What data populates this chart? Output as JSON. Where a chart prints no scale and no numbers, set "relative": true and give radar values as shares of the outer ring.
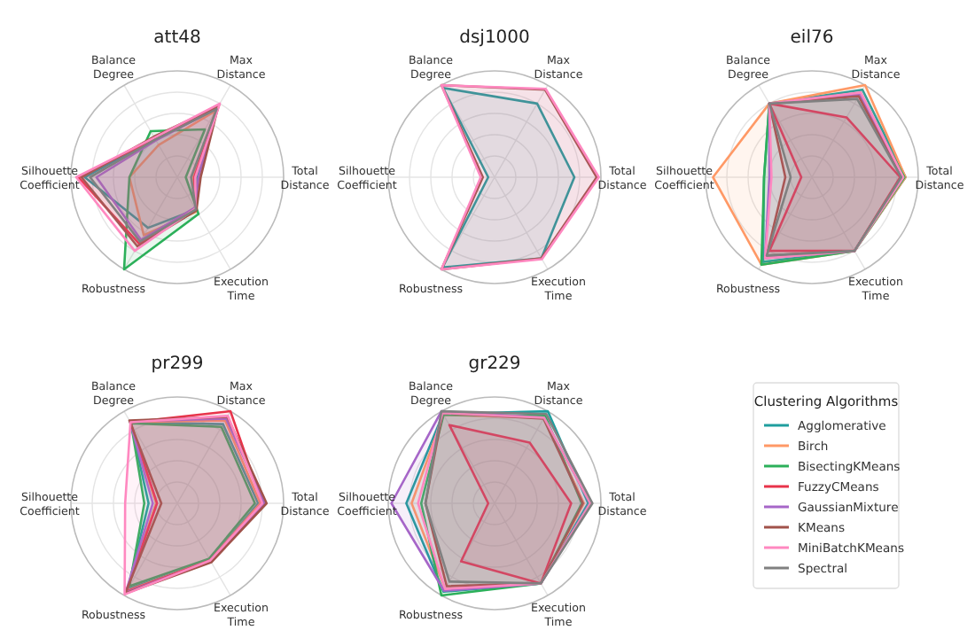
{
  "chart_data": [
    {
      "type": "radar",
      "title": "att48",
      "relative": true,
      "grid": true,
      "categories": [
        "Max Distance",
        "Total Distance",
        "Execution Time",
        "Robustness",
        "Silhouette Coefficient",
        "Balance Degree"
      ],
      "series": [
        {
          "color": "#1f9e9e",
          "values": [
            0.77,
            0.18,
            0.35,
            0.55,
            0.87,
            0.42
          ]
        },
        {
          "color": "#ff9966",
          "values": [
            0.72,
            0.15,
            0.37,
            0.63,
            0.45,
            0.35
          ]
        },
        {
          "color": "#2cb05a",
          "values": [
            0.52,
            0.08,
            0.4,
            1.0,
            0.45,
            0.5
          ]
        },
        {
          "color": "#e8334a",
          "values": [
            0.79,
            0.16,
            0.35,
            0.72,
            0.93,
            0.42
          ]
        },
        {
          "color": "#a666c8",
          "values": [
            0.75,
            0.2,
            0.33,
            0.68,
            0.76,
            0.4
          ]
        },
        {
          "color": "#a0524a",
          "values": [
            0.77,
            0.22,
            0.36,
            0.75,
            0.9,
            0.44
          ]
        },
        {
          "color": "#ff88c0",
          "values": [
            0.8,
            0.17,
            0.34,
            0.8,
            0.95,
            0.43
          ]
        },
        {
          "color": "#808080",
          "values": [
            0.74,
            0.13,
            0.35,
            0.7,
            0.82,
            0.41
          ]
        }
      ]
    },
    {
      "type": "radar",
      "title": "dsj1000",
      "relative": true,
      "grid": true,
      "categories": [
        "Max Distance",
        "Total Distance",
        "Execution Time",
        "Robustness",
        "Silhouette Coefficient",
        "Balance Degree"
      ],
      "series": [
        {
          "color": "#1f9e9e",
          "values": [
            0.8,
            0.75,
            0.88,
            0.98,
            0.06,
            0.97
          ]
        },
        {
          "color": "#a0524a",
          "values": [
            0.95,
            0.96,
            0.88,
            1.0,
            0.11,
            1.0
          ]
        },
        {
          "color": "#ff88c0",
          "values": [
            0.96,
            0.98,
            0.89,
            1.0,
            0.13,
            1.0
          ]
        }
      ]
    },
    {
      "type": "radar",
      "title": "eil76",
      "relative": true,
      "grid": true,
      "categories": [
        "Max Distance",
        "Total Distance",
        "Execution Time",
        "Robustness",
        "Silhouette Coefficient",
        "Balance Degree"
      ],
      "series": [
        {
          "color": "#1f9e9e",
          "values": [
            0.95,
            0.88,
            0.8,
            0.92,
            0.45,
            0.8
          ]
        },
        {
          "color": "#ff9966",
          "values": [
            1.0,
            0.88,
            0.8,
            0.95,
            0.93,
            0.8
          ]
        },
        {
          "color": "#2cb05a",
          "values": [
            0.9,
            0.87,
            0.8,
            0.95,
            0.45,
            0.8
          ]
        },
        {
          "color": "#e8334a",
          "values": [
            0.65,
            0.83,
            0.8,
            0.8,
            0.1,
            0.8
          ]
        },
        {
          "color": "#a666c8",
          "values": [
            0.9,
            0.85,
            0.8,
            0.88,
            0.4,
            0.8
          ]
        },
        {
          "color": "#a0524a",
          "values": [
            0.88,
            0.84,
            0.8,
            0.85,
            0.25,
            0.8
          ]
        },
        {
          "color": "#ff88c0",
          "values": [
            0.92,
            0.86,
            0.8,
            0.88,
            0.38,
            0.8
          ]
        },
        {
          "color": "#808080",
          "values": [
            0.85,
            0.84,
            0.8,
            0.85,
            0.2,
            0.8
          ]
        }
      ]
    },
    {
      "type": "radar",
      "title": "pr299",
      "relative": true,
      "grid": true,
      "categories": [
        "Max Distance",
        "Total Distance",
        "Execution Time",
        "Robustness",
        "Silhouette Coefficient",
        "Balance Degree"
      ],
      "series": [
        {
          "color": "#1f9e9e",
          "values": [
            0.86,
            0.76,
            0.62,
            0.93,
            0.27,
            0.88
          ]
        },
        {
          "color": "#ff9966",
          "values": [
            0.9,
            0.78,
            0.62,
            0.95,
            0.2,
            0.88
          ]
        },
        {
          "color": "#2cb05a",
          "values": [
            0.83,
            0.73,
            0.6,
            0.9,
            0.31,
            0.87
          ]
        },
        {
          "color": "#e8334a",
          "values": [
            1.0,
            0.8,
            0.62,
            0.96,
            0.19,
            0.88
          ]
        },
        {
          "color": "#a666c8",
          "values": [
            0.92,
            0.82,
            0.63,
            0.97,
            0.23,
            0.89
          ]
        },
        {
          "color": "#a0524a",
          "values": [
            0.94,
            0.84,
            0.64,
            0.98,
            0.15,
            0.9
          ]
        },
        {
          "color": "#ff88c0",
          "values": [
            0.95,
            0.8,
            0.62,
            0.99,
            0.49,
            0.88
          ]
        }
      ]
    },
    {
      "type": "radar",
      "title": "gr229",
      "relative": true,
      "grid": true,
      "legend": "right",
      "legend_title": "Clustering Algorithms",
      "categories": [
        "Max Distance",
        "Total Distance",
        "Execution Time",
        "Robustness",
        "Silhouette Coefficient",
        "Balance Degree"
      ],
      "series": [
        {
          "name": "Agglomerative",
          "color": "#1f9e9e",
          "values": [
            1.0,
            0.88,
            0.87,
            0.96,
            0.83,
            0.97
          ]
        },
        {
          "name": "Birch",
          "color": "#ff9966",
          "values": [
            0.93,
            0.84,
            0.87,
            0.93,
            0.78,
            0.96
          ]
        },
        {
          "name": "BisectingKMeans",
          "color": "#2cb05a",
          "values": [
            0.95,
            0.82,
            0.87,
            1.0,
            0.69,
            0.96
          ]
        },
        {
          "name": "FuzzyCMeans",
          "color": "#e8334a",
          "values": [
            0.66,
            0.72,
            0.87,
            0.63,
            0.06,
            0.85
          ]
        },
        {
          "name": "GaussianMixture",
          "color": "#a666c8",
          "values": [
            0.93,
            0.9,
            0.87,
            0.95,
            0.97,
            1.0
          ]
        },
        {
          "name": "KMeans",
          "color": "#a0524a",
          "values": [
            0.92,
            0.83,
            0.87,
            0.9,
            0.65,
            0.98
          ]
        },
        {
          "name": "MiniBatchKMeans",
          "color": "#ff88c0",
          "values": [
            0.93,
            0.9,
            0.87,
            0.93,
            0.72,
            0.98
          ]
        },
        {
          "name": "Spectral",
          "color": "#808080",
          "values": [
            0.97,
            0.92,
            0.87,
            0.85,
            0.65,
            1.0
          ]
        }
      ]
    }
  ]
}
